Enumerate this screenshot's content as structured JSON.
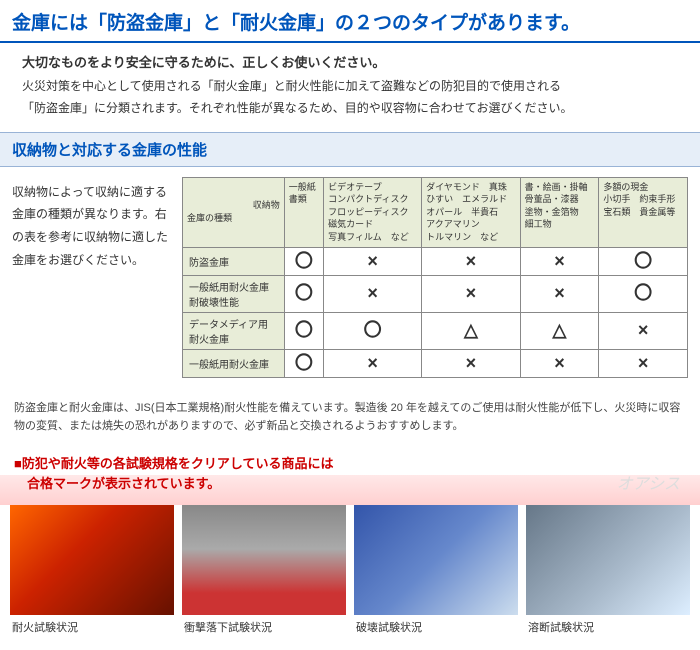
{
  "mainTitle": "金庫には「防盗金庫」と「耐火金庫」の２つのタイプがあります。",
  "intro": {
    "lead": "大切なものをより安全に守るために、正しくお使いください。",
    "body1": "火災対策を中心として使用される「耐火金庫」と耐火性能に加えて盗難などの防犯目的で使用される",
    "body2": "「防盗金庫」に分類されます。それぞれ性能が異なるため、目的や収容物に合わせてお選びください。"
  },
  "sectionTitle": "収納物と対応する金庫の性能",
  "tableDesc": "収納物によって収納に適する金庫の種類が異なります。右の表を参考に収納物に適した金庫をお選びください。",
  "table": {
    "cornerTop": "収納物",
    "cornerBottom": "金庫の種類",
    "cols": [
      "一般紙\n書類",
      "ビデオテープ\nコンパクトディスク\nフロッピーディスク\n磁気カード\n写真フィルム　など",
      "ダイヤモンド　真珠\nひすい　エメラルド\nオパール　半貴石\nアクアマリン\nトルマリン　など",
      "書・絵画・掛軸\n骨董品・漆器\n塗物・金箔物\n細工物",
      "多額の現金\n小切手　約束手形\n宝石類　貴金属等"
    ],
    "rows": [
      {
        "head": "防盗金庫",
        "cells": [
          "〇",
          "×",
          "×",
          "×",
          "〇"
        ]
      },
      {
        "head": "一般紙用耐火金庫\n耐破壊性能",
        "cells": [
          "〇",
          "×",
          "×",
          "×",
          "〇"
        ]
      },
      {
        "head": "データメディア用\n耐火金庫",
        "cells": [
          "〇",
          "〇",
          "△",
          "△",
          "×"
        ]
      },
      {
        "head": "一般紙用耐火金庫",
        "cells": [
          "〇",
          "×",
          "×",
          "×",
          "×"
        ]
      }
    ]
  },
  "note": "防盗金庫と耐火金庫は、JIS(日本工業規格)耐火性能を備えています。製造後 20 年を越えてのご使用は耐火性能が低下し、火災時に収容物の変質、または焼失の恐れがありますので、必ず新品と交換されるようおすすめします。",
  "testHeader": {
    "line1": "■防犯や耐火等の各試験規格をクリアしている商品には",
    "line2": "　合格マークが表示されています。"
  },
  "tests": [
    {
      "caption": "耐火試験状況",
      "imgClass": "img1"
    },
    {
      "caption": "衝撃落下試験状況",
      "imgClass": "img2"
    },
    {
      "caption": "破壊試験状況",
      "imgClass": "img3"
    },
    {
      "caption": "溶断試験状況",
      "imgClass": "img4"
    }
  ],
  "watermark": "オアシス",
  "colors": {
    "titleBlue": "#0055bb",
    "sectionBg": "#e6eef8",
    "tableHeadBg": "#e8edd8",
    "testRed": "#c00"
  }
}
